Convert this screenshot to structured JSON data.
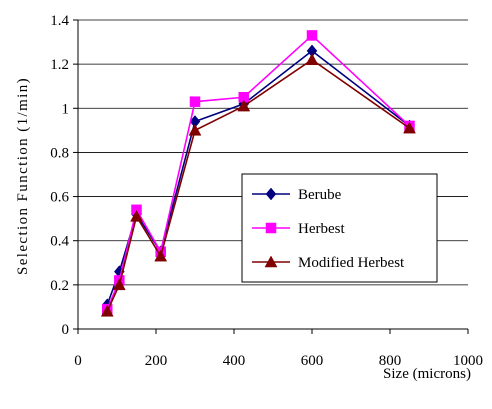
{
  "chart_data": {
    "type": "line",
    "title": "",
    "xlabel": "Size (microns)",
    "ylabel": "Selection Function (1/min)",
    "xlim": [
      0,
      1000
    ],
    "ylim": [
      0,
      1.4
    ],
    "x_ticks": [
      0,
      200,
      400,
      600,
      800,
      1000
    ],
    "y_ticks": [
      0,
      0.2,
      0.4,
      0.6,
      0.8,
      1,
      1.2,
      1.4
    ],
    "x_tick_labels": [
      "0",
      "200",
      "400",
      "600",
      "800",
      "1000"
    ],
    "y_tick_labels": [
      "0",
      "0.2",
      "0.4",
      "0.6",
      "0.8",
      "1",
      "1.2",
      "1.4"
    ],
    "grid": "horizontal",
    "legend_position": "right-center",
    "series": [
      {
        "name": "Berube",
        "color": "#000080",
        "marker": "diamond",
        "x": [
          75,
          106,
          150,
          212,
          300,
          425,
          600,
          850
        ],
        "y": [
          0.11,
          0.26,
          0.52,
          0.35,
          0.94,
          1.02,
          1.26,
          0.92
        ]
      },
      {
        "name": "Herbest",
        "color": "#ff00ff",
        "marker": "square",
        "x": [
          75,
          106,
          150,
          212,
          300,
          425,
          600,
          850
        ],
        "y": [
          0.09,
          0.22,
          0.54,
          0.35,
          1.03,
          1.05,
          1.33,
          0.92
        ]
      },
      {
        "name": "Modified Herbest",
        "color": "#800000",
        "marker": "triangle",
        "x": [
          75,
          106,
          150,
          212,
          300,
          425,
          600,
          850
        ],
        "y": [
          0.08,
          0.2,
          0.51,
          0.33,
          0.9,
          1.01,
          1.22,
          0.91
        ]
      }
    ]
  }
}
